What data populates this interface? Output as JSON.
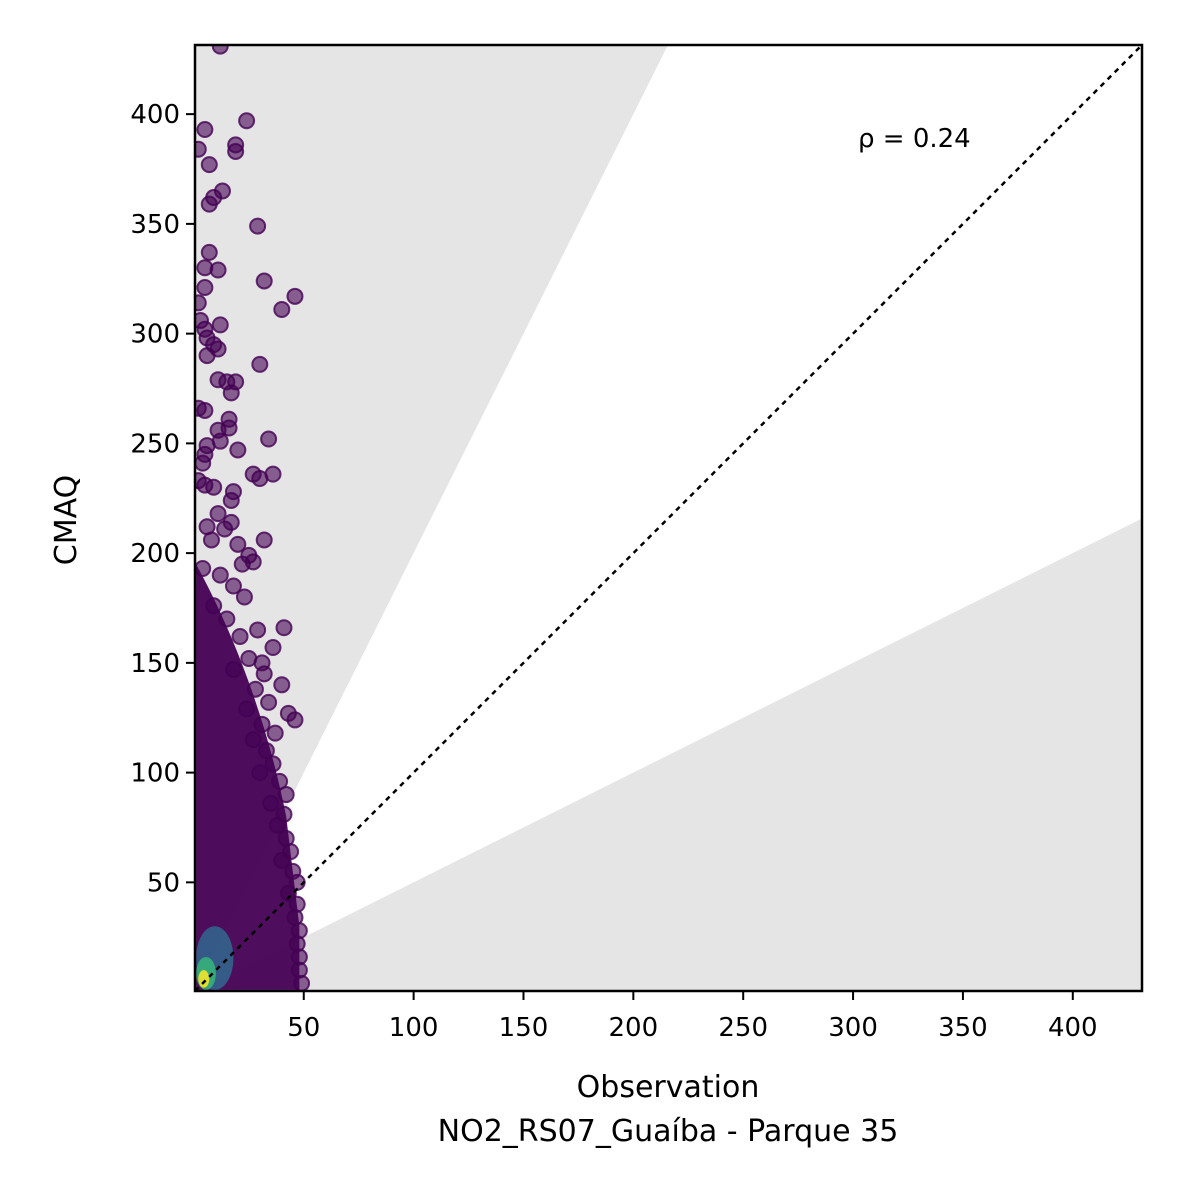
{
  "chart_data": {
    "type": "scatter",
    "title": "",
    "xlabel": "Observation",
    "xlabel_sub": "NO2_RS07_Guaíba - Parque 35",
    "ylabel": "CMAQ",
    "xlim": [
      0.5,
      431.5
    ],
    "ylim": [
      0.5,
      431.5
    ],
    "xticks": [
      50,
      100,
      150,
      200,
      250,
      300,
      350,
      400
    ],
    "yticks": [
      50,
      100,
      150,
      200,
      250,
      300,
      350,
      400
    ],
    "grid": false,
    "annotation": "ρ = 0.24",
    "reference_line": {
      "style": "dotted",
      "slope": 1,
      "color": "#000000"
    },
    "shaded_regions": [
      {
        "description": "above y = 2x",
        "color": "#e5e5e5"
      },
      {
        "description": "below y = 0.5x",
        "color": "#e5e5e5"
      }
    ],
    "colormap": "viridis",
    "colors": {
      "low_density": "#440154",
      "mid_density": "#21918c",
      "high_density": "#fde725",
      "shade": "#e5e5e5"
    },
    "points": [
      {
        "x": 12,
        "y": 431
      },
      {
        "x": 24,
        "y": 397
      },
      {
        "x": 5,
        "y": 393
      },
      {
        "x": 2,
        "y": 384
      },
      {
        "x": 19,
        "y": 386
      },
      {
        "x": 19,
        "y": 383
      },
      {
        "x": 7,
        "y": 377
      },
      {
        "x": 13,
        "y": 365
      },
      {
        "x": 9,
        "y": 362
      },
      {
        "x": 7,
        "y": 359
      },
      {
        "x": 29,
        "y": 349
      },
      {
        "x": 7,
        "y": 337
      },
      {
        "x": 5,
        "y": 330
      },
      {
        "x": 11,
        "y": 329
      },
      {
        "x": 32,
        "y": 324
      },
      {
        "x": 5,
        "y": 321
      },
      {
        "x": 46,
        "y": 317
      },
      {
        "x": 2,
        "y": 314
      },
      {
        "x": 40,
        "y": 311
      },
      {
        "x": 3,
        "y": 306
      },
      {
        "x": 12,
        "y": 304
      },
      {
        "x": 5,
        "y": 302
      },
      {
        "x": 6,
        "y": 298
      },
      {
        "x": 9,
        "y": 295
      },
      {
        "x": 11,
        "y": 293
      },
      {
        "x": 6,
        "y": 290
      },
      {
        "x": 30,
        "y": 286
      },
      {
        "x": 11,
        "y": 279
      },
      {
        "x": 15,
        "y": 278
      },
      {
        "x": 19,
        "y": 278
      },
      {
        "x": 17,
        "y": 273
      },
      {
        "x": 2,
        "y": 266
      },
      {
        "x": 5,
        "y": 265
      },
      {
        "x": 16,
        "y": 261
      },
      {
        "x": 16,
        "y": 257
      },
      {
        "x": 11,
        "y": 256
      },
      {
        "x": 34,
        "y": 252
      },
      {
        "x": 12,
        "y": 251
      },
      {
        "x": 6,
        "y": 249
      },
      {
        "x": 20,
        "y": 247
      },
      {
        "x": 5,
        "y": 245
      },
      {
        "x": 4,
        "y": 241
      },
      {
        "x": 27,
        "y": 236
      },
      {
        "x": 36,
        "y": 236
      },
      {
        "x": 30,
        "y": 234
      },
      {
        "x": 2,
        "y": 233
      },
      {
        "x": 5,
        "y": 231
      },
      {
        "x": 9,
        "y": 230
      },
      {
        "x": 18,
        "y": 228
      },
      {
        "x": 17,
        "y": 224
      },
      {
        "x": 11,
        "y": 218
      },
      {
        "x": 17,
        "y": 214
      },
      {
        "x": 6,
        "y": 212
      },
      {
        "x": 14,
        "y": 211
      },
      {
        "x": 32,
        "y": 206
      },
      {
        "x": 8,
        "y": 206
      },
      {
        "x": 20,
        "y": 204
      },
      {
        "x": 25,
        "y": 199
      },
      {
        "x": 27,
        "y": 196
      },
      {
        "x": 22,
        "y": 195
      },
      {
        "x": 4,
        "y": 193
      },
      {
        "x": 12,
        "y": 190
      },
      {
        "x": 18,
        "y": 185
      },
      {
        "x": 23,
        "y": 180
      },
      {
        "x": 9,
        "y": 176
      },
      {
        "x": 15,
        "y": 170
      },
      {
        "x": 41,
        "y": 166
      },
      {
        "x": 29,
        "y": 165
      },
      {
        "x": 21,
        "y": 162
      },
      {
        "x": 36,
        "y": 157
      },
      {
        "x": 25,
        "y": 152
      },
      {
        "x": 31,
        "y": 150
      },
      {
        "x": 18,
        "y": 147
      },
      {
        "x": 32,
        "y": 145
      },
      {
        "x": 40,
        "y": 140
      },
      {
        "x": 28,
        "y": 138
      },
      {
        "x": 34,
        "y": 132
      },
      {
        "x": 24,
        "y": 129
      },
      {
        "x": 43,
        "y": 127
      },
      {
        "x": 46,
        "y": 124
      },
      {
        "x": 31,
        "y": 122
      },
      {
        "x": 37,
        "y": 118
      },
      {
        "x": 27,
        "y": 115
      },
      {
        "x": 33,
        "y": 110
      },
      {
        "x": 36,
        "y": 104
      },
      {
        "x": 30,
        "y": 100
      },
      {
        "x": 39,
        "y": 96
      },
      {
        "x": 42,
        "y": 90
      },
      {
        "x": 35,
        "y": 86
      },
      {
        "x": 41,
        "y": 81
      },
      {
        "x": 38,
        "y": 76
      },
      {
        "x": 42,
        "y": 70
      },
      {
        "x": 44,
        "y": 64
      },
      {
        "x": 40,
        "y": 60
      },
      {
        "x": 45,
        "y": 55
      },
      {
        "x": 47,
        "y": 50
      },
      {
        "x": 43,
        "y": 45
      },
      {
        "x": 47,
        "y": 40
      },
      {
        "x": 46,
        "y": 34
      },
      {
        "x": 48,
        "y": 28
      },
      {
        "x": 47,
        "y": 22
      },
      {
        "x": 48,
        "y": 16
      },
      {
        "x": 48,
        "y": 10
      },
      {
        "x": 49,
        "y": 4
      }
    ],
    "density_layers": [
      {
        "description": "dense low-level core",
        "x_range": [
          1,
          48
        ],
        "y_range": [
          1,
          195
        ],
        "color": "#440154"
      },
      {
        "description": "blue-green band",
        "x_range": [
          1,
          18
        ],
        "y_range": [
          1,
          30
        ],
        "color": "#31688e"
      },
      {
        "description": "green band",
        "x_range": [
          1,
          10
        ],
        "y_range": [
          1,
          16
        ],
        "color": "#35b779"
      },
      {
        "description": "yellow peak",
        "x_range": [
          2,
          7
        ],
        "y_range": [
          2,
          10
        ],
        "color": "#fde725"
      }
    ]
  }
}
